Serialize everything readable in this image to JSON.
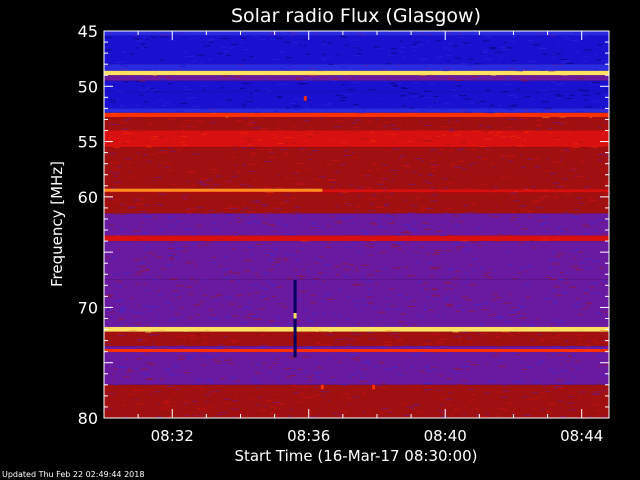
{
  "chart_data": {
    "type": "heatmap",
    "title": "Solar radio Flux (Glasgow)",
    "xlabel": "Start Time (16-Mar-17 08:30:00)",
    "ylabel": "Frequency [MHz]",
    "x_tick_labels": [
      "08:32",
      "08:36",
      "08:40",
      "08:44"
    ],
    "x_tick_minutes": [
      2,
      6,
      10,
      14
    ],
    "xlim_minutes": [
      0,
      14.8
    ],
    "ylim_mhz": [
      45,
      80
    ],
    "y_ticks": [
      45,
      50,
      55,
      60,
      70,
      80
    ],
    "y_minor_step": 1,
    "colormap": [
      "#000060",
      "#1a10d0",
      "#2a2ae0",
      "#6a1aa0",
      "#a01010",
      "#d81010",
      "#ff3000",
      "#ff9020",
      "#ffe060"
    ],
    "bands": [
      {
        "f0": 45.0,
        "f1": 45.4,
        "level": 2
      },
      {
        "f0": 45.4,
        "f1": 48.0,
        "level": 1
      },
      {
        "f0": 48.0,
        "f1": 48.6,
        "level": 2
      },
      {
        "f0": 48.6,
        "f1": 49.0,
        "level": 8
      },
      {
        "f0": 49.0,
        "f1": 49.5,
        "level": 3
      },
      {
        "f0": 49.5,
        "f1": 50.5,
        "level": 1
      },
      {
        "f0": 50.5,
        "f1": 52.0,
        "level": 1
      },
      {
        "f0": 52.0,
        "f1": 52.4,
        "level": 2
      },
      {
        "f0": 52.4,
        "f1": 52.8,
        "level": 6
      },
      {
        "f0": 52.8,
        "f1": 54.0,
        "level": 4
      },
      {
        "f0": 54.0,
        "f1": 55.5,
        "level": 5
      },
      {
        "f0": 55.5,
        "f1": 59.3,
        "level": 4
      },
      {
        "f0": 59.3,
        "f1": 59.6,
        "level": 5
      },
      {
        "f0": 59.6,
        "f1": 61.5,
        "level": 4
      },
      {
        "f0": 61.5,
        "f1": 63.5,
        "level": 3
      },
      {
        "f0": 63.5,
        "f1": 64.0,
        "level": 5
      },
      {
        "f0": 64.0,
        "f1": 67.5,
        "level": 3
      },
      {
        "f0": 67.5,
        "f1": 71.8,
        "level": 3
      },
      {
        "f0": 71.8,
        "f1": 72.2,
        "level": 8
      },
      {
        "f0": 72.2,
        "f1": 73.5,
        "level": 4
      },
      {
        "f0": 73.5,
        "f1": 77.0,
        "level": 3
      },
      {
        "f0": 77.0,
        "f1": 80.0,
        "level": 4
      }
    ],
    "bright_lines": [
      {
        "f": 48.8,
        "t0": 0,
        "t1": 14.8,
        "level": 8
      },
      {
        "f": 52.6,
        "t0": 0,
        "t1": 14.8,
        "level": 6
      },
      {
        "f": 59.4,
        "t0": 0,
        "t1": 6.4,
        "level": 7
      },
      {
        "f": 71.9,
        "t0": 0,
        "t1": 14.8,
        "level": 8
      },
      {
        "f": 73.9,
        "t0": 0,
        "t1": 14.8,
        "level": 6
      },
      {
        "f": 63.7,
        "t0": 0,
        "t1": 14.8,
        "level": 5
      }
    ],
    "bursts": [
      {
        "t": 5.6,
        "f0": 67.5,
        "f1": 74.5,
        "level": 0
      },
      {
        "t": 5.6,
        "f0": 70.5,
        "f1": 71.0,
        "level": 8
      },
      {
        "t": 5.9,
        "f0": 50.9,
        "f1": 51.3,
        "level": 6
      },
      {
        "t": 6.4,
        "f0": 77.0,
        "f1": 77.4,
        "level": 6
      },
      {
        "t": 7.9,
        "f0": 77.0,
        "f1": 77.4,
        "level": 6
      }
    ]
  },
  "footer": {
    "updated": "Updated Thu Feb 22 02:49:44 2018"
  }
}
